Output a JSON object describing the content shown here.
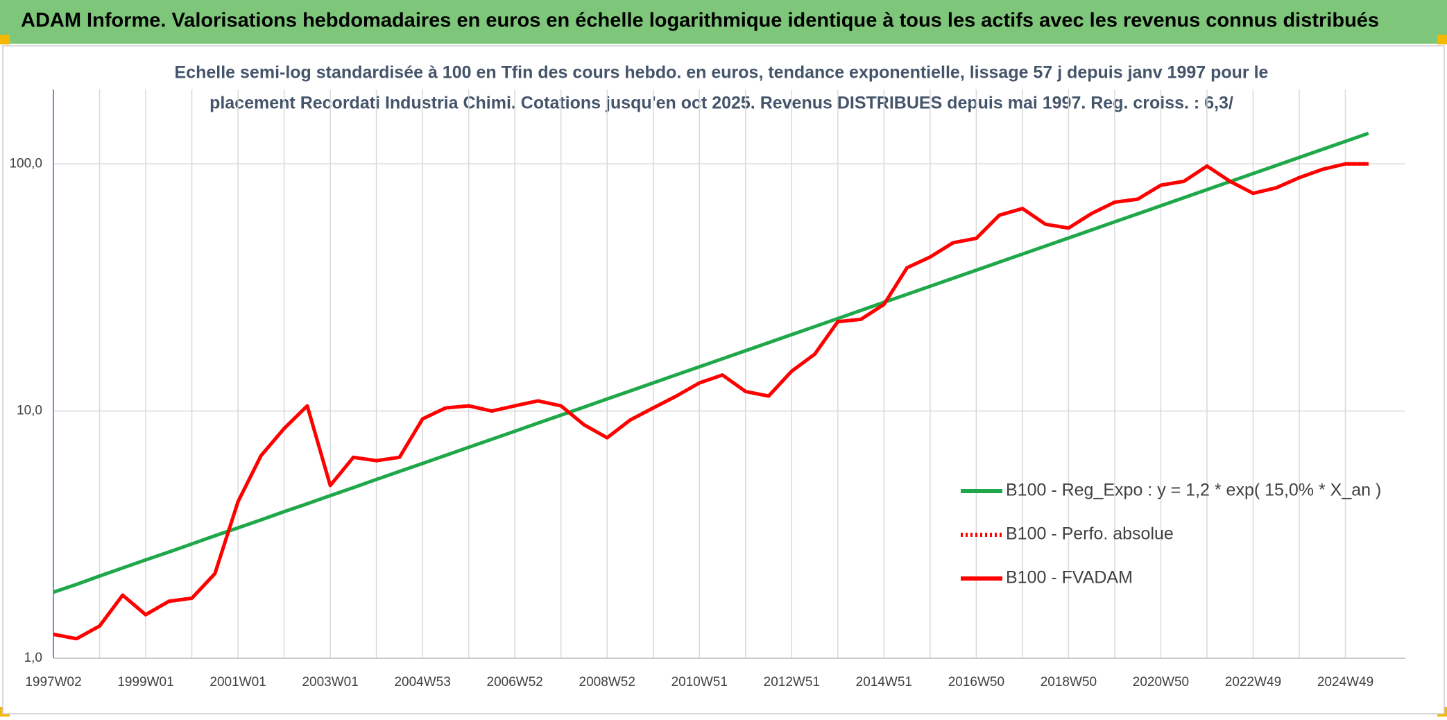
{
  "chart_data": {
    "type": "line",
    "title": "ADAM Informe. Valorisations hebdomadaires en euros en échelle logarithmique identique à tous les actifs avec les revenus connus distribués",
    "subtitle": [
      "Echelle semi-log standardisée à 100 en Tfin des cours hebdo. en euros, tendance exponentielle, lissage 57 j depuis janv 1997 pour le",
      "placement Recordati Industria Chimi. Cotations jusqu'en oct 2025. Revenus DISTRIBUES depuis mai 1997. Reg. croiss. : 6,3/"
    ],
    "categories": [
      "1997W02",
      null,
      null,
      null,
      "1999W01",
      null,
      null,
      null,
      "2001W01",
      null,
      null,
      null,
      "2003W01",
      null,
      null,
      null,
      "2004W53",
      null,
      null,
      null,
      "2006W52",
      null,
      null,
      null,
      "2008W52",
      null,
      null,
      null,
      "2010W51",
      null,
      null,
      null,
      "2012W51",
      null,
      null,
      null,
      "2014W51",
      null,
      null,
      null,
      "2016W50",
      null,
      null,
      null,
      "2018W50",
      null,
      null,
      null,
      "2020W50",
      null,
      null,
      null,
      "2022W49",
      null,
      null,
      null,
      "2024W49",
      null
    ],
    "log_scale": true,
    "grid": true,
    "ylim": [
      1,
      200
    ],
    "yticks": [
      {
        "value": 1,
        "label": "1,0"
      },
      {
        "value": 10,
        "label": "10,0"
      },
      {
        "value": 100,
        "label": "100,0"
      }
    ],
    "legend": "right",
    "series": [
      {
        "name": "B100 - Reg_Expo : y = 1,2 * exp( 15,0% *  X_an )",
        "color": "#1fa84a",
        "style": "solid",
        "values": [
          1.85,
          1.99,
          2.15,
          2.32,
          2.5,
          2.69,
          2.9,
          3.13,
          3.37,
          3.63,
          3.92,
          4.22,
          4.55,
          4.9,
          5.29,
          5.7,
          6.14,
          6.62,
          7.14,
          7.69,
          8.29,
          8.94,
          9.63,
          10.38,
          11.19,
          12.06,
          13.0,
          14.02,
          15.11,
          16.28,
          17.55,
          18.92,
          20.39,
          21.98,
          23.69,
          25.54,
          27.53,
          29.67,
          31.98,
          34.47,
          37.16,
          40.05,
          43.17,
          46.53,
          50.16,
          54.06,
          58.28,
          62.81,
          67.71,
          72.98,
          78.66,
          84.79,
          91.39,
          98.51,
          106.19,
          114.45,
          123.37,
          132.98
        ]
      },
      {
        "name": "B100 - Perfo. absolue",
        "color": "#ff0000",
        "style": "dotted",
        "values": [
          1.25,
          1.2,
          1.35,
          1.8,
          1.5,
          1.7,
          1.75,
          2.2,
          4.3,
          6.6,
          8.5,
          10.5,
          5.0,
          6.5,
          6.3,
          6.5,
          9.3,
          10.3,
          10.5,
          10.0,
          10.5,
          11.0,
          10.5,
          8.8,
          7.8,
          9.2,
          10.3,
          11.5,
          13.0,
          14.0,
          12.0,
          11.5,
          14.5,
          17.0,
          23.0,
          23.5,
          27.0,
          38,
          42,
          48,
          50,
          62,
          66,
          57,
          55,
          63,
          70,
          72,
          82,
          85,
          98,
          85,
          76,
          80,
          88,
          95,
          100,
          100
        ]
      },
      {
        "name": "B100 - FVADAM",
        "color": "#ff0000",
        "style": "solid",
        "values": [
          1.25,
          1.2,
          1.35,
          1.8,
          1.5,
          1.7,
          1.75,
          2.2,
          4.3,
          6.6,
          8.5,
          10.5,
          5.0,
          6.5,
          6.3,
          6.5,
          9.3,
          10.3,
          10.5,
          10.0,
          10.5,
          11.0,
          10.5,
          8.8,
          7.8,
          9.2,
          10.3,
          11.5,
          13.0,
          14.0,
          12.0,
          11.5,
          14.5,
          17.0,
          23.0,
          23.5,
          27.0,
          38,
          42,
          48,
          50,
          62,
          66,
          57,
          55,
          63,
          70,
          72,
          82,
          85,
          98,
          85,
          76,
          80,
          88,
          95,
          100,
          100
        ]
      }
    ]
  }
}
